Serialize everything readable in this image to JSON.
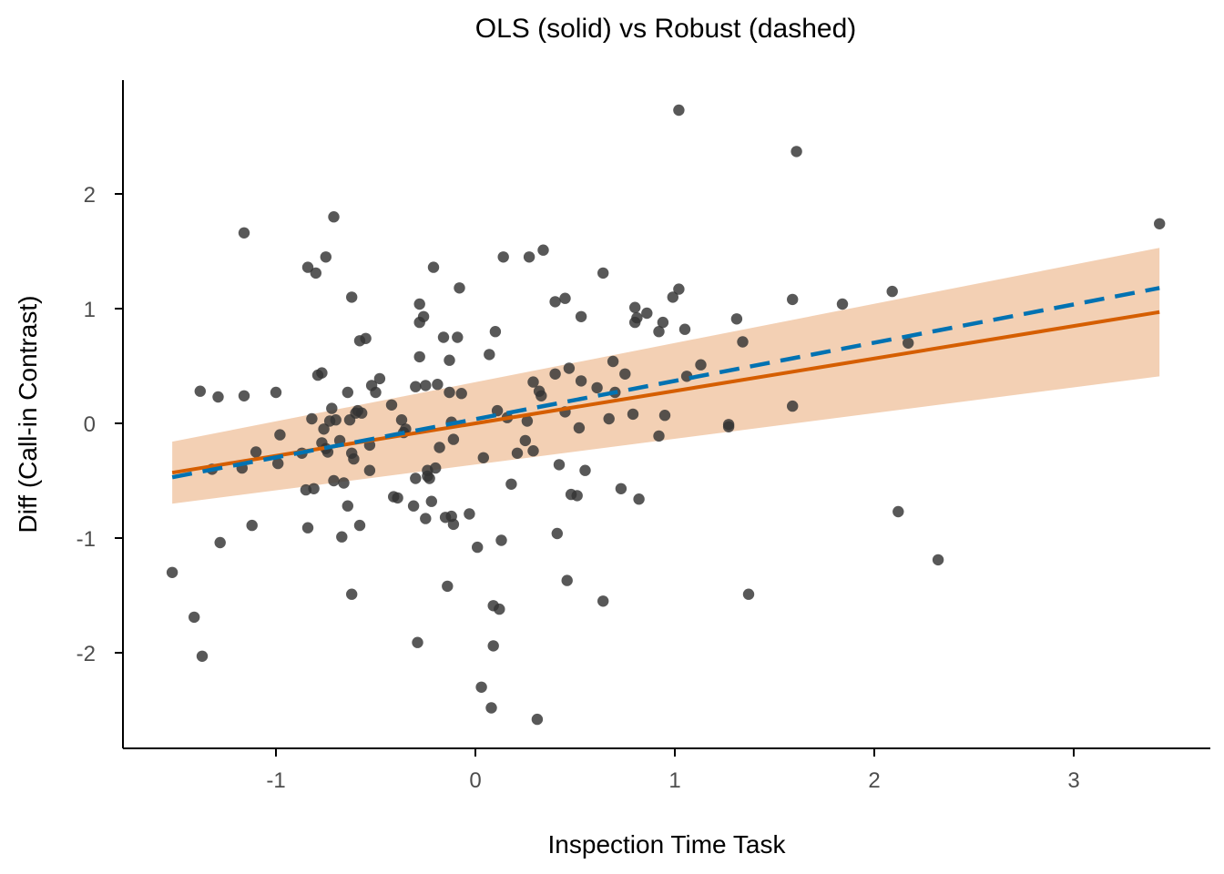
{
  "chart_data": {
    "type": "scatter",
    "title": "OLS (solid) vs Robust (dashed)",
    "xlabel": "Inspection Time Task",
    "ylabel": "Diff (Call-in Contrast)",
    "xlim": [
      -1.75,
      3.6
    ],
    "ylim": [
      -2.7,
      2.95
    ],
    "xticks": [
      -1,
      0,
      1,
      2,
      3
    ],
    "yticks": [
      -2,
      -1,
      0,
      1,
      2
    ],
    "grid": false,
    "colors": {
      "points": "#333333",
      "ols_line": "#D55E00",
      "robust_line": "#0072B2",
      "ribbon": "#F2CDB0"
    },
    "ols_fit": {
      "x_range": [
        -1.52,
        3.43
      ],
      "y_at_start": -0.43,
      "y_at_end": 0.97,
      "ci_lower_start": -0.7,
      "ci_upper_start": -0.16,
      "ci_lower_end": 0.41,
      "ci_upper_end": 1.53
    },
    "robust_fit": {
      "x_range": [
        -1.52,
        3.43
      ],
      "y_at_start": -0.47,
      "y_at_end": 1.18
    },
    "points": [
      [
        -1.52,
        -1.3
      ],
      [
        -1.41,
        -1.69
      ],
      [
        -1.37,
        -2.03
      ],
      [
        -1.38,
        0.28
      ],
      [
        -1.32,
        -0.4
      ],
      [
        -1.29,
        0.23
      ],
      [
        -1.28,
        -1.04
      ],
      [
        -1.16,
        1.66
      ],
      [
        -1.16,
        0.24
      ],
      [
        -1.17,
        -0.39
      ],
      [
        -1.12,
        -0.89
      ],
      [
        -1.1,
        -0.25
      ],
      [
        -1.0,
        0.27
      ],
      [
        -0.99,
        -0.35
      ],
      [
        -0.98,
        -0.1
      ],
      [
        -0.87,
        -0.26
      ],
      [
        -0.84,
        1.36
      ],
      [
        -0.85,
        -0.58
      ],
      [
        -0.84,
        -0.91
      ],
      [
        -0.82,
        0.04
      ],
      [
        -0.81,
        -0.57
      ],
      [
        -0.8,
        1.31
      ],
      [
        -0.79,
        0.42
      ],
      [
        -0.77,
        0.44
      ],
      [
        -0.77,
        -0.17
      ],
      [
        -0.76,
        -0.05
      ],
      [
        -0.75,
        1.45
      ],
      [
        -0.75,
        -0.22
      ],
      [
        -0.74,
        -0.25
      ],
      [
        -0.73,
        0.02
      ],
      [
        -0.72,
        0.13
      ],
      [
        -0.71,
        1.8
      ],
      [
        -0.7,
        0.03
      ],
      [
        -0.71,
        -0.5
      ],
      [
        -0.68,
        -0.15
      ],
      [
        -0.67,
        -0.99
      ],
      [
        -0.66,
        -0.52
      ],
      [
        -0.64,
        -0.72
      ],
      [
        -0.64,
        0.27
      ],
      [
        -0.63,
        0.03
      ],
      [
        -0.62,
        1.1
      ],
      [
        -0.62,
        -0.26
      ],
      [
        -0.62,
        -1.49
      ],
      [
        -0.61,
        -0.31
      ],
      [
        -0.6,
        0.09
      ],
      [
        -0.59,
        0.11
      ],
      [
        -0.58,
        0.72
      ],
      [
        -0.58,
        -0.89
      ],
      [
        -0.57,
        0.09
      ],
      [
        -0.55,
        0.74
      ],
      [
        -0.53,
        -0.19
      ],
      [
        -0.53,
        -0.41
      ],
      [
        -0.52,
        0.33
      ],
      [
        -0.5,
        0.27
      ],
      [
        -0.48,
        0.39
      ],
      [
        -0.42,
        0.16
      ],
      [
        -0.41,
        -0.64
      ],
      [
        -0.39,
        -0.65
      ],
      [
        -0.37,
        0.03
      ],
      [
        -0.36,
        -0.08
      ],
      [
        -0.35,
        -0.05
      ],
      [
        -0.31,
        -0.72
      ],
      [
        -0.3,
        0.32
      ],
      [
        -0.3,
        -0.48
      ],
      [
        -0.29,
        -1.91
      ],
      [
        -0.28,
        0.88
      ],
      [
        -0.28,
        0.58
      ],
      [
        -0.28,
        1.04
      ],
      [
        -0.26,
        0.93
      ],
      [
        -0.25,
        0.33
      ],
      [
        -0.25,
        -0.83
      ],
      [
        -0.24,
        -0.46
      ],
      [
        -0.24,
        -0.41
      ],
      [
        -0.23,
        -0.48
      ],
      [
        -0.22,
        -0.68
      ],
      [
        -0.21,
        1.36
      ],
      [
        -0.2,
        -0.39
      ],
      [
        -0.19,
        0.34
      ],
      [
        -0.18,
        -0.21
      ],
      [
        -0.16,
        0.75
      ],
      [
        -0.15,
        -0.82
      ],
      [
        -0.14,
        -1.42
      ],
      [
        -0.13,
        0.27
      ],
      [
        -0.13,
        0.55
      ],
      [
        -0.12,
        -0.81
      ],
      [
        -0.12,
        0.01
      ],
      [
        -0.11,
        -0.14
      ],
      [
        -0.11,
        -0.88
      ],
      [
        -0.09,
        0.75
      ],
      [
        -0.08,
        1.18
      ],
      [
        -0.07,
        0.26
      ],
      [
        -0.03,
        -0.79
      ],
      [
        0.01,
        -1.08
      ],
      [
        0.03,
        -2.3
      ],
      [
        0.04,
        -0.3
      ],
      [
        0.07,
        0.6
      ],
      [
        0.08,
        -2.48
      ],
      [
        0.09,
        -1.59
      ],
      [
        0.09,
        -1.94
      ],
      [
        0.1,
        0.8
      ],
      [
        0.11,
        0.11
      ],
      [
        0.12,
        -1.62
      ],
      [
        0.13,
        -1.02
      ],
      [
        0.14,
        1.45
      ],
      [
        0.16,
        0.05
      ],
      [
        0.18,
        -0.53
      ],
      [
        0.21,
        -0.26
      ],
      [
        0.25,
        -0.15
      ],
      [
        0.26,
        0.02
      ],
      [
        0.27,
        1.45
      ],
      [
        0.29,
        -0.24
      ],
      [
        0.29,
        0.36
      ],
      [
        0.31,
        -2.58
      ],
      [
        0.32,
        0.28
      ],
      [
        0.33,
        0.24
      ],
      [
        0.34,
        1.51
      ],
      [
        0.4,
        0.43
      ],
      [
        0.4,
        1.06
      ],
      [
        0.41,
        -0.96
      ],
      [
        0.42,
        -0.36
      ],
      [
        0.45,
        1.09
      ],
      [
        0.45,
        0.1
      ],
      [
        0.46,
        -1.37
      ],
      [
        0.47,
        0.48
      ],
      [
        0.48,
        -0.62
      ],
      [
        0.51,
        -0.63
      ],
      [
        0.52,
        -0.04
      ],
      [
        0.53,
        0.93
      ],
      [
        0.53,
        0.37
      ],
      [
        0.55,
        -0.41
      ],
      [
        0.61,
        0.31
      ],
      [
        0.64,
        1.31
      ],
      [
        0.64,
        -1.55
      ],
      [
        0.67,
        0.04
      ],
      [
        0.69,
        0.54
      ],
      [
        0.7,
        0.27
      ],
      [
        0.73,
        -0.57
      ],
      [
        0.75,
        0.43
      ],
      [
        0.79,
        0.08
      ],
      [
        0.8,
        0.88
      ],
      [
        0.8,
        1.01
      ],
      [
        0.81,
        0.92
      ],
      [
        0.82,
        -0.66
      ],
      [
        0.86,
        0.96
      ],
      [
        0.92,
        0.8
      ],
      [
        0.92,
        -0.11
      ],
      [
        0.94,
        0.88
      ],
      [
        0.95,
        0.07
      ],
      [
        0.99,
        1.1
      ],
      [
        1.02,
        2.73
      ],
      [
        1.02,
        1.17
      ],
      [
        1.05,
        0.82
      ],
      [
        1.06,
        0.41
      ],
      [
        1.13,
        0.51
      ],
      [
        1.27,
        -0.03
      ],
      [
        1.27,
        -0.01
      ],
      [
        1.31,
        0.91
      ],
      [
        1.34,
        0.71
      ],
      [
        1.37,
        -1.49
      ],
      [
        1.59,
        1.08
      ],
      [
        1.59,
        0.15
      ],
      [
        1.61,
        2.37
      ],
      [
        1.84,
        1.04
      ],
      [
        2.09,
        1.15
      ],
      [
        2.12,
        -0.77
      ],
      [
        2.17,
        0.7
      ],
      [
        2.32,
        -1.19
      ],
      [
        3.43,
        1.74
      ]
    ]
  }
}
